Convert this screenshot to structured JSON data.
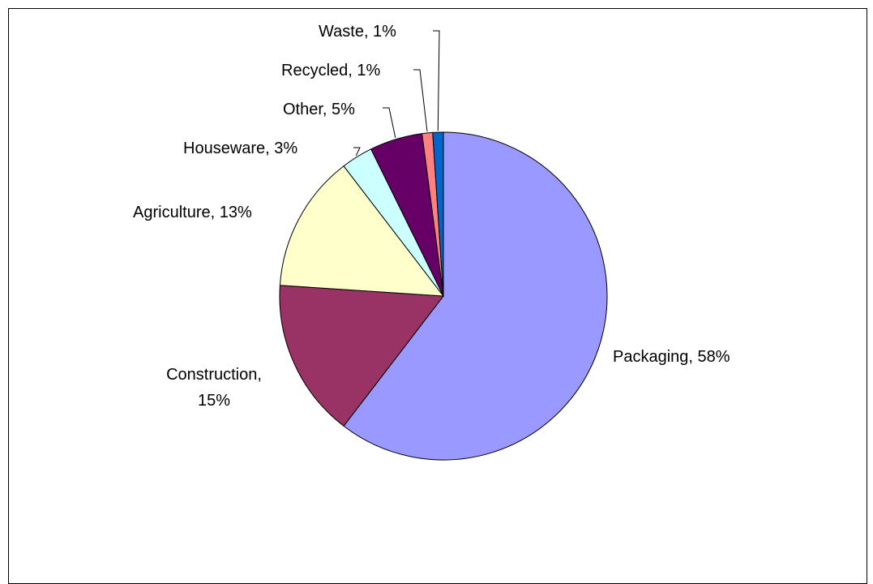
{
  "chart_data": {
    "type": "pie",
    "title": "",
    "start_angle_deg": 0,
    "direction": "clockwise",
    "slices": [
      {
        "label": "Packaging",
        "value": 58,
        "text": "Packaging, 58%",
        "color": "#9999FF"
      },
      {
        "label": "Construction",
        "value": 15,
        "text": "Construction, 15%",
        "color": "#993366"
      },
      {
        "label": "Agriculture",
        "value": 13,
        "text": "Agriculture, 13%",
        "color": "#FFFFCC"
      },
      {
        "label": "Houseware",
        "value": 3,
        "text": "Houseware, 3%",
        "color": "#CCFFFF"
      },
      {
        "label": "Other",
        "value": 5,
        "text": "Other, 5%",
        "color": "#660066"
      },
      {
        "label": "Recycled",
        "value": 1,
        "text": "Recycled, 1%",
        "color": "#FF8080"
      },
      {
        "label": "Waste",
        "value": 1,
        "text": "Waste, 1%",
        "color": "#0066CC"
      }
    ]
  }
}
